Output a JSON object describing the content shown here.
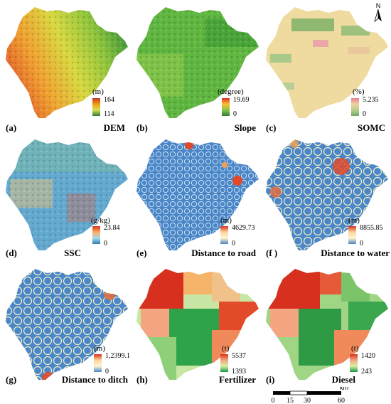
{
  "panels": [
    {
      "label": "(a)",
      "title": "DEM",
      "unit": "(m)",
      "max": "164",
      "min": "114",
      "ramp": [
        "#c0392b",
        "#f39c12",
        "#d4e157",
        "#2e7d32"
      ]
    },
    {
      "label": "(b)",
      "title": "Slope",
      "unit": "(degree)",
      "max": "19.69",
      "min": "0",
      "ramp": [
        "#d32f2f",
        "#fbc02d",
        "#8bc34a",
        "#2e7d32"
      ]
    },
    {
      "label": "(c)",
      "title": "SOMC",
      "unit": "(%)",
      "max": "5.235",
      "min": "0",
      "ramp": [
        "#e57f8e",
        "#f0d0a0",
        "#b8cf8a",
        "#6fa86a"
      ]
    },
    {
      "label": "(d)",
      "title": "SSC",
      "unit": "(g/kg)",
      "max": "23.84",
      "min": "0",
      "ramp": [
        "#d7301f",
        "#fdae61",
        "#abd9e9",
        "#2c7bb6"
      ]
    },
    {
      "label": "(e)",
      "title": "Distance to road",
      "unit": "(m)",
      "max": "4629.73",
      "min": "0",
      "ramp": [
        "#d7301f",
        "#fdd49e",
        "#fff5d0",
        "#4a86c8"
      ]
    },
    {
      "label": "(f )",
      "title": "Distance to water",
      "unit": "(m)",
      "max": "8855.85",
      "min": "0",
      "ramp": [
        "#d7301f",
        "#fdd49e",
        "#fff5d0",
        "#4a86c8"
      ]
    },
    {
      "label": "(g)",
      "title": "Distance to ditch",
      "unit": "(m)",
      "max": "1,2399.1",
      "min": "0",
      "ramp": [
        "#d7301f",
        "#fdd49e",
        "#fff5d0",
        "#4a86c8"
      ]
    },
    {
      "label": "(h)",
      "title": "Fertilizer",
      "unit": "(t)",
      "max": "5537",
      "min": "1393",
      "ramp": [
        "#d7301f",
        "#f4a582",
        "#d9f0a3",
        "#1a9641"
      ]
    },
    {
      "label": "(i)",
      "title": "Diesel",
      "unit": "(t)",
      "max": "1420",
      "min": "243",
      "ramp": [
        "#d7301f",
        "#f4a582",
        "#d9f0a3",
        "#1a9641"
      ]
    }
  ],
  "scale": {
    "unit": "km",
    "ticks": [
      "0",
      "15",
      "30",
      "60"
    ]
  },
  "north": "N"
}
